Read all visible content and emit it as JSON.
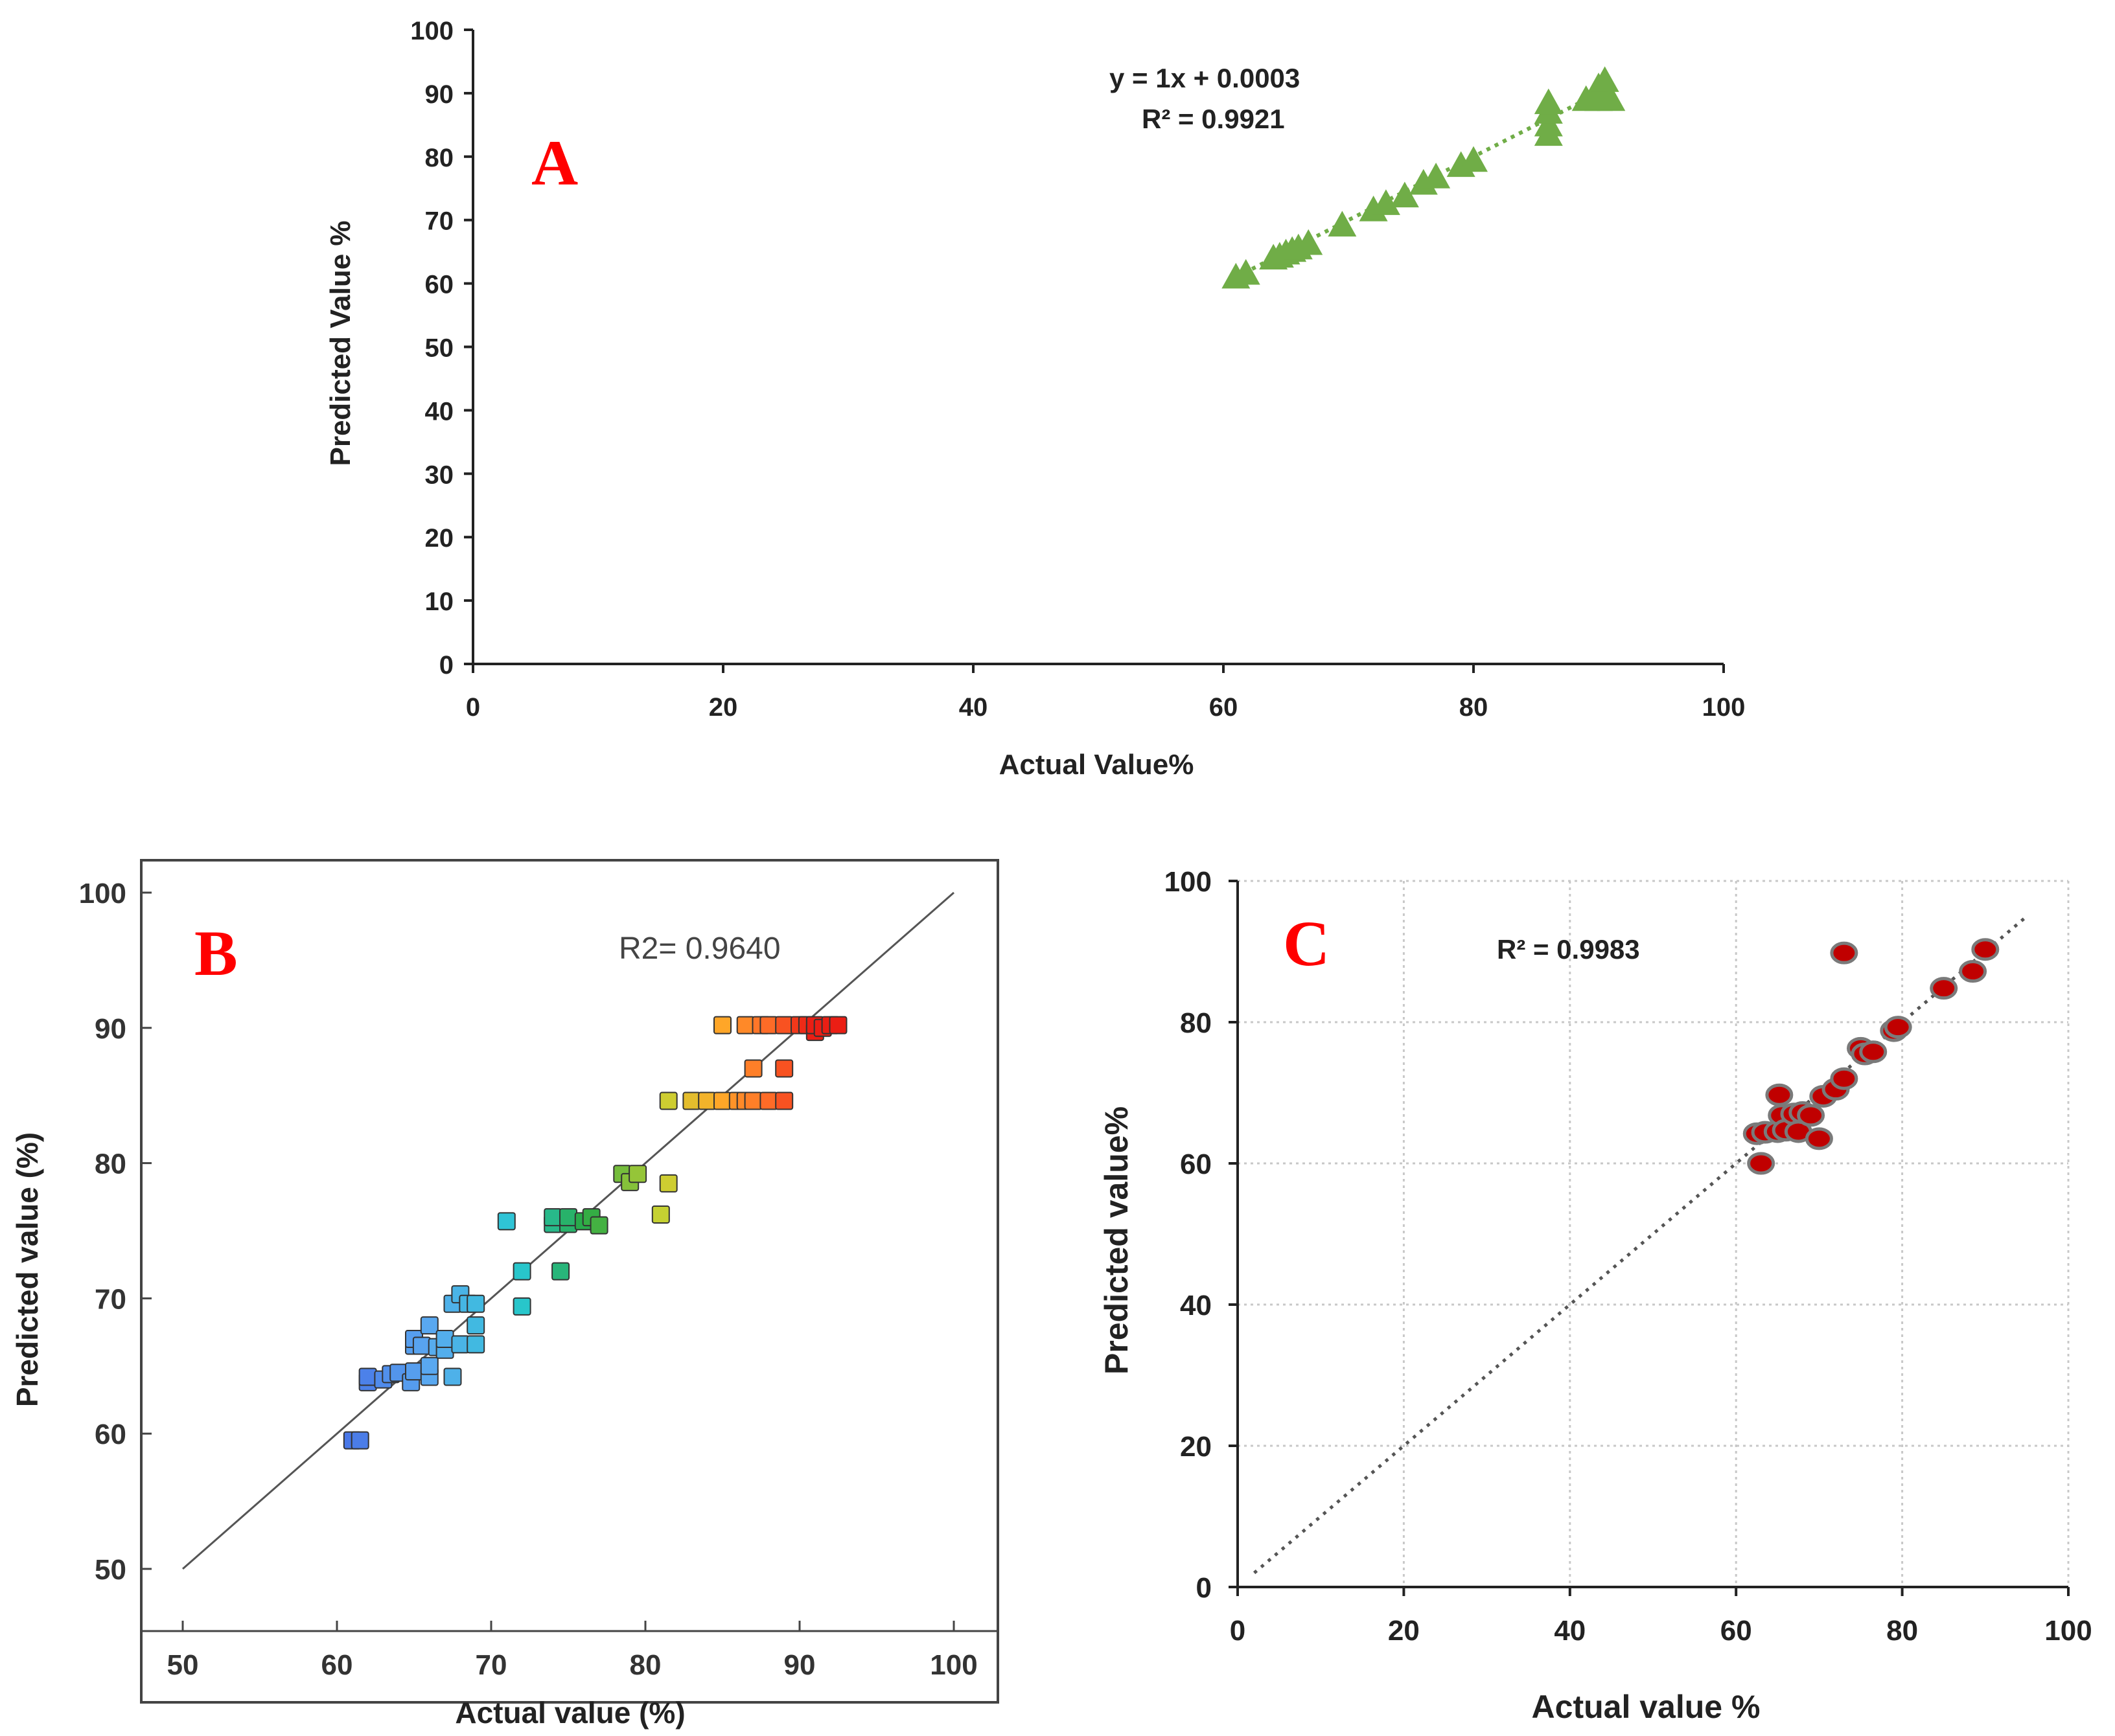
{
  "chart_data": [
    {
      "panel": "A",
      "type": "scatter",
      "xlabel": "Actual Value%",
      "ylabel": "Predicted Value %",
      "xlim": [
        0,
        100
      ],
      "ylim": [
        0,
        100
      ],
      "xticks": [
        0,
        20,
        40,
        60,
        80,
        100
      ],
      "yticks": [
        0,
        10,
        20,
        30,
        40,
        50,
        60,
        70,
        80,
        90,
        100
      ],
      "grid": false,
      "marker": "triangle",
      "marker_color": "#70ad47",
      "annotation": [
        "y = 1x + 0.0003",
        "R² = 0.9921"
      ],
      "trendline": {
        "slope": 1,
        "intercept": 0.0003,
        "x_range": [
          61,
          91
        ],
        "style": "dotted"
      },
      "points": [
        [
          61,
          61
        ],
        [
          61.8,
          61.6
        ],
        [
          64,
          64
        ],
        [
          64.5,
          64.3
        ],
        [
          65,
          64.8
        ],
        [
          65.5,
          65.2
        ],
        [
          66,
          65.6
        ],
        [
          66.8,
          66.3
        ],
        [
          69.5,
          69.2
        ],
        [
          72,
          71.6
        ],
        [
          73,
          72.6
        ],
        [
          74.5,
          73.8
        ],
        [
          76,
          75.8
        ],
        [
          77,
          76.8
        ],
        [
          79,
          78.6
        ],
        [
          80,
          79.4
        ],
        [
          86,
          83.5
        ],
        [
          86,
          85
        ],
        [
          86,
          87
        ],
        [
          86,
          88.5
        ],
        [
          89,
          89
        ],
        [
          90,
          89
        ],
        [
          90,
          91
        ],
        [
          90.5,
          92
        ],
        [
          91,
          89
        ]
      ]
    },
    {
      "panel": "B",
      "type": "scatter",
      "xlabel": "Actual value (%)",
      "ylabel": "Predicted value (%)",
      "xlim": [
        50,
        100
      ],
      "ylim": [
        50,
        100
      ],
      "xticks": [
        50,
        60,
        70,
        80,
        90,
        100
      ],
      "yticks": [
        50,
        60,
        70,
        80,
        90,
        100
      ],
      "grid": false,
      "marker": "square",
      "color_scale": "value gradient blue-cyan-green-yellow-orange-red",
      "annotation": "R2= 0.9640",
      "reference_line": {
        "from": [
          50,
          50
        ],
        "to": [
          100,
          100
        ],
        "style": "solid"
      },
      "points": [
        [
          61,
          59.5
        ],
        [
          61.5,
          59.5
        ],
        [
          62,
          63.8
        ],
        [
          62,
          64.2
        ],
        [
          63,
          64
        ],
        [
          63.5,
          64.4
        ],
        [
          64,
          64.5
        ],
        [
          64.8,
          63.8
        ],
        [
          65,
          64.6
        ],
        [
          65,
          66.5
        ],
        [
          65,
          67
        ],
        [
          65.5,
          66.5
        ],
        [
          66,
          64.2
        ],
        [
          66,
          65
        ],
        [
          66,
          68
        ],
        [
          66.5,
          66.4
        ],
        [
          67,
          66.2
        ],
        [
          67,
          67
        ],
        [
          67.5,
          64.2
        ],
        [
          67.5,
          69.6
        ],
        [
          68,
          66.6
        ],
        [
          68,
          70.3
        ],
        [
          68.5,
          69.6
        ],
        [
          69,
          66.6
        ],
        [
          69,
          68
        ],
        [
          69,
          69.6
        ],
        [
          71,
          75.7
        ],
        [
          72,
          72
        ],
        [
          72,
          69.4
        ],
        [
          74,
          75.5
        ],
        [
          74,
          76
        ],
        [
          74.5,
          72
        ],
        [
          75,
          75.5
        ],
        [
          75,
          76
        ],
        [
          76,
          75.7
        ],
        [
          76.5,
          76
        ],
        [
          77,
          75.4
        ],
        [
          78.5,
          79.2
        ],
        [
          79,
          78.6
        ],
        [
          79.5,
          79.2
        ],
        [
          81,
          76.2
        ],
        [
          81.5,
          78.5
        ],
        [
          81.5,
          84.6
        ],
        [
          83,
          84.6
        ],
        [
          84,
          84.6
        ],
        [
          85,
          84.6
        ],
        [
          85,
          90.2
        ],
        [
          86,
          84.6
        ],
        [
          86.5,
          84.6
        ],
        [
          86.5,
          90.2
        ],
        [
          87,
          87
        ],
        [
          87,
          84.6
        ],
        [
          87.5,
          90.2
        ],
        [
          88,
          84.6
        ],
        [
          88,
          90.2
        ],
        [
          89,
          84.6
        ],
        [
          89,
          87
        ],
        [
          89,
          90.2
        ],
        [
          90,
          90.2
        ],
        [
          90.5,
          90.2
        ],
        [
          91,
          89.7
        ],
        [
          91,
          90.2
        ],
        [
          91.5,
          90
        ],
        [
          92,
          90.2
        ],
        [
          92.5,
          90.2
        ]
      ]
    },
    {
      "panel": "C",
      "type": "scatter",
      "xlabel": "Actual value %",
      "ylabel": "Predicted value%",
      "xlim": [
        0,
        100
      ],
      "ylim": [
        0,
        100
      ],
      "xticks": [
        0,
        20,
        40,
        60,
        80,
        100
      ],
      "yticks": [
        0,
        20,
        40,
        60,
        80,
        100
      ],
      "grid": true,
      "marker": "circle",
      "marker_color": "#c00000",
      "annotation": "R² = 0.9983",
      "trendline": {
        "from": [
          2,
          2
        ],
        "to": [
          95,
          95
        ],
        "style": "dotted"
      },
      "points": [
        [
          62.5,
          64.2
        ],
        [
          63,
          60
        ],
        [
          63.5,
          64.4
        ],
        [
          65,
          64.5
        ],
        [
          65.2,
          69.7
        ],
        [
          65.5,
          66.8
        ],
        [
          66,
          64.7
        ],
        [
          67,
          67
        ],
        [
          67.5,
          64.5
        ],
        [
          68,
          67.2
        ],
        [
          69,
          66.8
        ],
        [
          70,
          63.5
        ],
        [
          70.5,
          69.5
        ],
        [
          72,
          70.5
        ],
        [
          73,
          72
        ],
        [
          73,
          89.8
        ],
        [
          75,
          76.3
        ],
        [
          75.5,
          75.5
        ],
        [
          76.5,
          75.8
        ],
        [
          79,
          78.8
        ],
        [
          79.5,
          79.3
        ],
        [
          85,
          84.8
        ],
        [
          88.5,
          87.2
        ],
        [
          90,
          90.3
        ]
      ]
    }
  ],
  "labels": {
    "panel_A": "A",
    "panel_B": "B",
    "panel_C": "C",
    "a_eq": "y = 1x + 0.0003",
    "a_r2": "R² = 0.9921",
    "b_r2": "R2= 0.9640",
    "c_r2": "R² = 0.9983"
  },
  "colors": {
    "panel_letter": "#ff0000",
    "a_marker": "#70ad47",
    "c_marker": "#c00000",
    "axis": "#222222"
  }
}
